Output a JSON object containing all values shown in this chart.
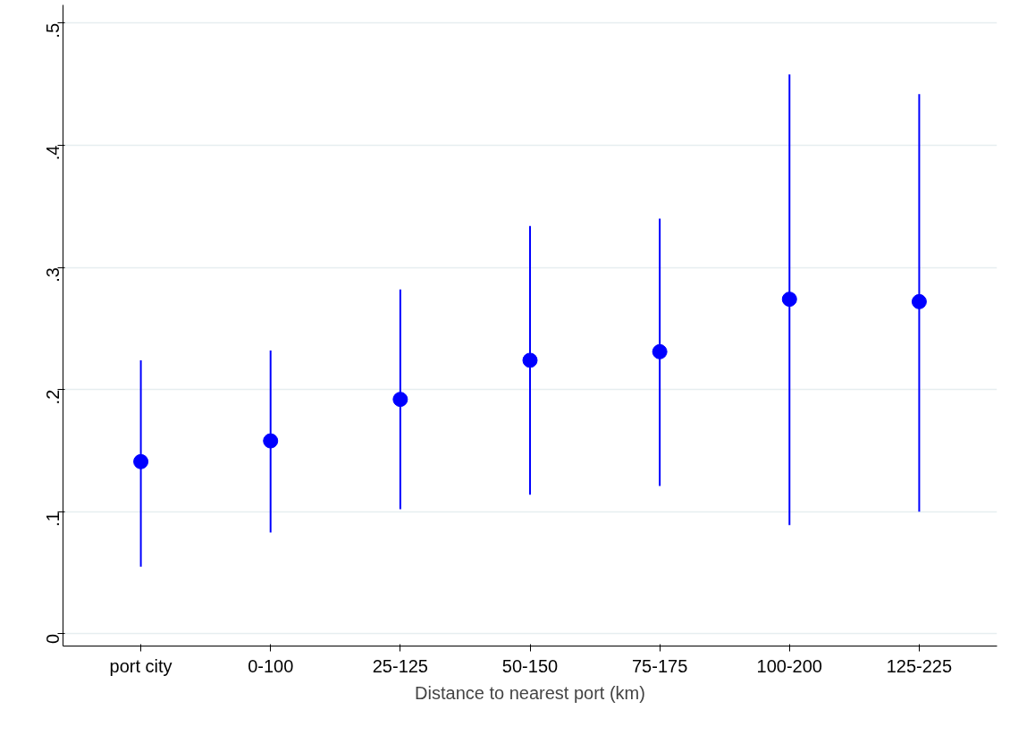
{
  "chart_data": {
    "type": "scatter",
    "xlabel": "Distance to nearest port (km)",
    "categories": [
      "port city",
      "0-100",
      "25-125",
      "50-150",
      "75-175",
      "100-200",
      "125-225"
    ],
    "values": [
      0.141,
      0.158,
      0.192,
      0.224,
      0.231,
      0.274,
      0.272
    ],
    "errors": [
      [
        0.055,
        0.224
      ],
      [
        0.083,
        0.232
      ],
      [
        0.102,
        0.282
      ],
      [
        0.114,
        0.334
      ],
      [
        0.121,
        0.34
      ],
      [
        0.089,
        0.458
      ],
      [
        0.1,
        0.442
      ]
    ],
    "color": "#0000ff",
    "ylim": [
      -0.01,
      0.515
    ],
    "yticks": [
      {
        "value": 0,
        "label": "0"
      },
      {
        "value": 0.1,
        "label": ".1"
      },
      {
        "value": 0.2,
        "label": ".2"
      },
      {
        "value": 0.3,
        "label": ".3"
      },
      {
        "value": 0.4,
        "label": ".4"
      },
      {
        "value": 0.5,
        "label": ".5"
      }
    ],
    "grid": "y",
    "marker": "circle"
  }
}
